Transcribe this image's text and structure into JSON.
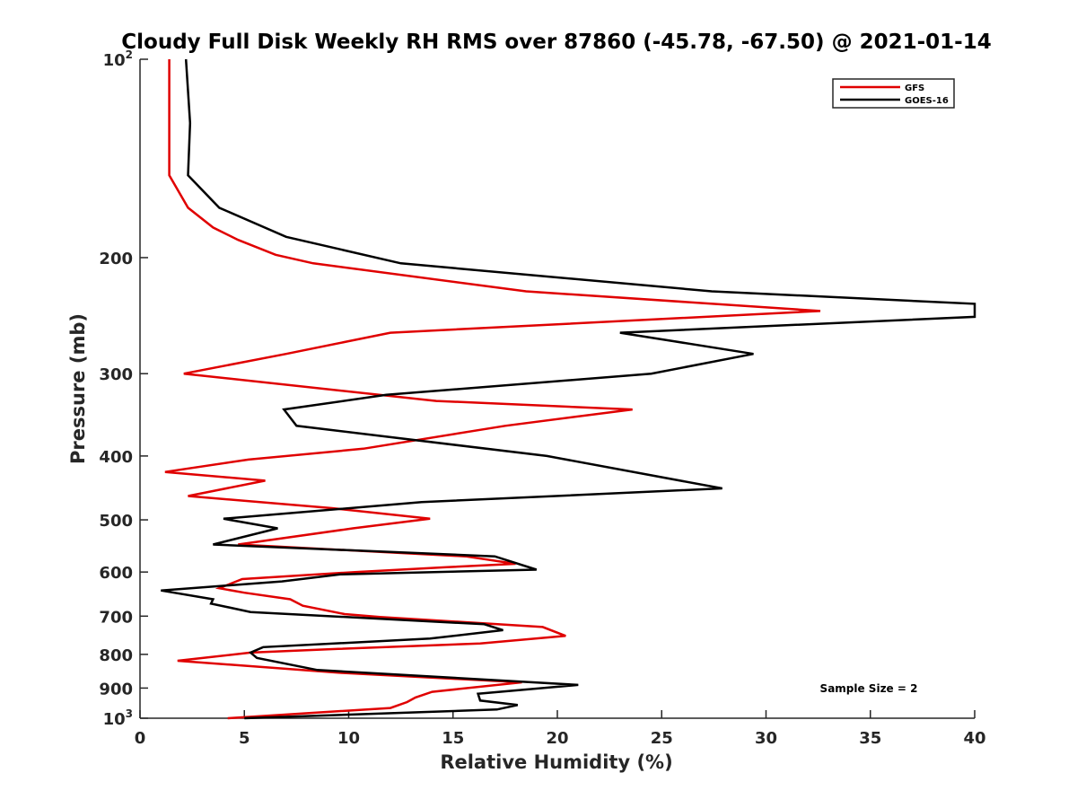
{
  "chart_data": {
    "type": "line",
    "title": "Cloudy Full Disk Weekly RH RMS over 87860 (-45.78, -67.50) @ 2021-01-14",
    "xlabel": "Relative Humidity (%)",
    "ylabel": "Pressure (mb)",
    "xlim": [
      0,
      40
    ],
    "ylim": [
      100,
      1000
    ],
    "y_scale": "log",
    "y_reversed": true,
    "x_ticks": [
      0,
      5,
      10,
      15,
      20,
      25,
      30,
      35,
      40
    ],
    "y_ticks": [
      {
        "value": 100,
        "label": "10",
        "sup": "2"
      },
      {
        "value": 200,
        "label": "200"
      },
      {
        "value": 300,
        "label": "300"
      },
      {
        "value": 400,
        "label": "400"
      },
      {
        "value": 500,
        "label": "500"
      },
      {
        "value": 600,
        "label": "600"
      },
      {
        "value": 700,
        "label": "700"
      },
      {
        "value": 800,
        "label": "800"
      },
      {
        "value": 900,
        "label": "900"
      },
      {
        "value": 1000,
        "label": "10",
        "sup": "3"
      }
    ],
    "grid": false,
    "legend_position": "top-right",
    "annotation": "Sample Size = 2",
    "series": [
      {
        "name": "GFS",
        "color": "#e00000",
        "points": [
          [
            1.4,
            100
          ],
          [
            1.4,
            150
          ],
          [
            2.3,
            168
          ],
          [
            3.5,
            180
          ],
          [
            4.7,
            188
          ],
          [
            6.5,
            198
          ],
          [
            8.3,
            204
          ],
          [
            18.5,
            225
          ],
          [
            32.6,
            241
          ],
          [
            12.0,
            260
          ],
          [
            7.0,
            280
          ],
          [
            2.1,
            300
          ],
          [
            14.2,
            330
          ],
          [
            23.6,
            340
          ],
          [
            17.5,
            360
          ],
          [
            10.7,
            390
          ],
          [
            5.2,
            405
          ],
          [
            1.2,
            423
          ],
          [
            6.0,
            436
          ],
          [
            2.3,
            460
          ],
          [
            9.2,
            480
          ],
          [
            13.9,
            498
          ],
          [
            10.2,
            515
          ],
          [
            4.7,
            545
          ],
          [
            15.6,
            568
          ],
          [
            18.0,
            583
          ],
          [
            14.7,
            590
          ],
          [
            10.3,
            600
          ],
          [
            4.9,
            615
          ],
          [
            3.8,
            635
          ],
          [
            5.0,
            645
          ],
          [
            7.2,
            660
          ],
          [
            7.8,
            675
          ],
          [
            9.8,
            695
          ],
          [
            11.5,
            702
          ],
          [
            19.3,
            727
          ],
          [
            20.4,
            750
          ],
          [
            16.3,
            770
          ],
          [
            9.5,
            785
          ],
          [
            5.3,
            795
          ],
          [
            1.8,
            818
          ],
          [
            9.5,
            853
          ],
          [
            18.3,
            882
          ],
          [
            14.0,
            912
          ],
          [
            13.2,
            930
          ],
          [
            12.8,
            945
          ],
          [
            12.0,
            965
          ],
          [
            4.2,
            1000
          ]
        ]
      },
      {
        "name": "GOES-16",
        "color": "#000000",
        "points": [
          [
            2.2,
            100
          ],
          [
            2.4,
            125
          ],
          [
            2.3,
            150
          ],
          [
            3.8,
            168
          ],
          [
            7.0,
            186
          ],
          [
            12.5,
            204
          ],
          [
            27.4,
            225
          ],
          [
            40.0,
            235
          ],
          [
            40.0,
            246
          ],
          [
            23.0,
            260
          ],
          [
            29.4,
            280
          ],
          [
            24.5,
            300
          ],
          [
            11.8,
            323
          ],
          [
            6.9,
            340
          ],
          [
            7.5,
            360
          ],
          [
            19.5,
            400
          ],
          [
            27.9,
            448
          ],
          [
            13.5,
            470
          ],
          [
            4.0,
            498
          ],
          [
            6.6,
            515
          ],
          [
            3.5,
            545
          ],
          [
            17.0,
            568
          ],
          [
            19.0,
            595
          ],
          [
            9.6,
            605
          ],
          [
            6.8,
            620
          ],
          [
            1.0,
            640
          ],
          [
            3.5,
            660
          ],
          [
            3.4,
            670
          ],
          [
            5.3,
            690
          ],
          [
            16.5,
            720
          ],
          [
            17.4,
            735
          ],
          [
            13.9,
            757
          ],
          [
            5.9,
            780
          ],
          [
            5.3,
            795
          ],
          [
            5.6,
            810
          ],
          [
            8.5,
            845
          ],
          [
            21.0,
            890
          ],
          [
            16.2,
            918
          ],
          [
            16.3,
            940
          ],
          [
            18.1,
            955
          ],
          [
            17.1,
            970
          ],
          [
            5.0,
            1000
          ]
        ]
      }
    ]
  }
}
